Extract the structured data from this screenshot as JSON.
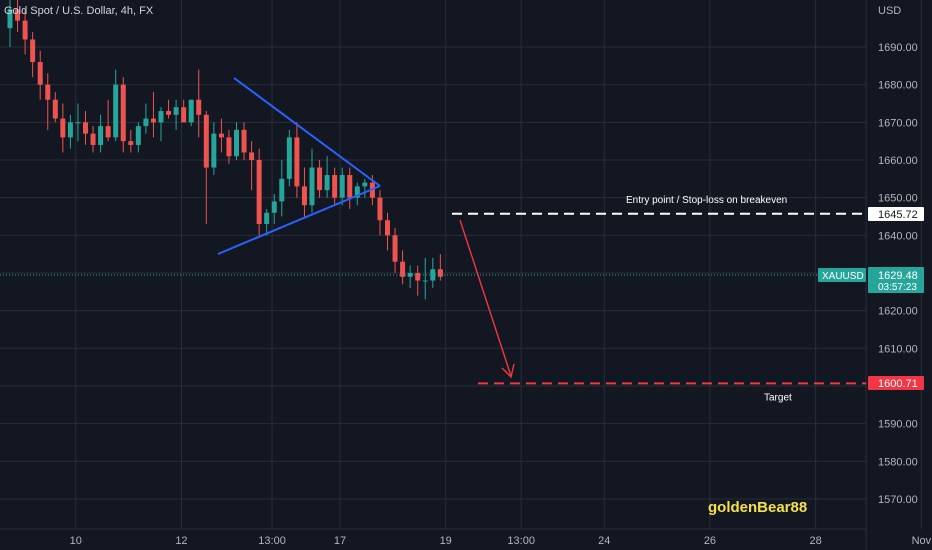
{
  "chart_data": {
    "type": "candlestick",
    "title": "Gold Spot / U.S. Dollar, 4h, FX",
    "currency_label": "USD",
    "symbol": "XAUUSD",
    "last_price": "1629.48",
    "countdown": "03:57:23",
    "ylim": [
      1565,
      1702
    ],
    "y_ticks": [
      "1690.00",
      "1680.00",
      "1670.00",
      "1660.00",
      "1650.00",
      "1640.00",
      "1630.00",
      "1620.00",
      "1610.00",
      "1600.00",
      "1590.00",
      "1580.00",
      "1570.00"
    ],
    "y_tick_values": [
      1690,
      1680,
      1670,
      1660,
      1650,
      1640,
      1630,
      1620,
      1610,
      1600,
      1590,
      1580,
      1570
    ],
    "x_ticks": [
      "10",
      "12",
      "13:00",
      "17",
      "19",
      "13:00",
      "24",
      "26",
      "28",
      "Nov"
    ],
    "x_tick_index": [
      5,
      19,
      31,
      40,
      54,
      64,
      75,
      89,
      103,
      117
    ],
    "grid": true,
    "colors": {
      "up": "#26a69a",
      "down": "#ef5350",
      "background": "#131722",
      "grid": "#2a2e39",
      "trendline": "#2962ff",
      "stop": "#ffffff",
      "target": "#f23645",
      "arrow": "#f23645",
      "watermark": "#f5e04b",
      "tag": "#26a69a"
    },
    "candles": [
      [
        1695,
        1703,
        1690,
        1700
      ],
      [
        1700,
        1703,
        1694,
        1697
      ],
      [
        1697,
        1700,
        1688,
        1692
      ],
      [
        1692,
        1694,
        1682,
        1686
      ],
      [
        1686,
        1689,
        1676,
        1680
      ],
      [
        1680,
        1683,
        1668,
        1676
      ],
      [
        1676,
        1678,
        1670,
        1671
      ],
      [
        1671,
        1675,
        1662,
        1666
      ],
      [
        1666,
        1672,
        1663,
        1670
      ],
      [
        1670,
        1675,
        1665,
        1670
      ],
      [
        1670,
        1673,
        1664,
        1667
      ],
      [
        1667,
        1669,
        1662,
        1664
      ],
      [
        1664,
        1672,
        1662,
        1669
      ],
      [
        1669,
        1676,
        1665,
        1666
      ],
      [
        1666,
        1684,
        1665,
        1680
      ],
      [
        1680,
        1682,
        1662,
        1665
      ],
      [
        1665,
        1668,
        1662,
        1664
      ],
      [
        1664,
        1670,
        1662,
        1669
      ],
      [
        1669,
        1675,
        1667,
        1671
      ],
      [
        1671,
        1678,
        1666,
        1670
      ],
      [
        1670,
        1674,
        1665,
        1673
      ],
      [
        1673,
        1676,
        1671,
        1672
      ],
      [
        1672,
        1676,
        1668,
        1674
      ],
      [
        1674,
        1676,
        1670,
        1670
      ],
      [
        1670,
        1676,
        1669,
        1676
      ],
      [
        1676,
        1684,
        1666,
        1672
      ],
      [
        1672,
        1673,
        1643,
        1658
      ],
      [
        1658,
        1670,
        1656,
        1667
      ],
      [
        1667,
        1671,
        1662,
        1666
      ],
      [
        1666,
        1668,
        1659,
        1661
      ],
      [
        1661,
        1670,
        1660,
        1668
      ],
      [
        1668,
        1670,
        1660,
        1662
      ],
      [
        1662,
        1665,
        1652,
        1660
      ],
      [
        1660,
        1663,
        1640,
        1643
      ],
      [
        1643,
        1647,
        1640,
        1646
      ],
      [
        1646,
        1651,
        1643,
        1649
      ],
      [
        1649,
        1660,
        1645,
        1655
      ],
      [
        1655,
        1668,
        1653,
        1666
      ],
      [
        1666,
        1670,
        1650,
        1653
      ],
      [
        1653,
        1658,
        1645,
        1648
      ],
      [
        1648,
        1663,
        1646,
        1658
      ],
      [
        1658,
        1660,
        1650,
        1652
      ],
      [
        1652,
        1661,
        1650,
        1656
      ],
      [
        1656,
        1658,
        1648,
        1650
      ],
      [
        1650,
        1658,
        1648,
        1656
      ],
      [
        1656,
        1658,
        1647,
        1650
      ],
      [
        1650,
        1654,
        1648,
        1653
      ],
      [
        1653,
        1655,
        1650,
        1654
      ],
      [
        1654,
        1656,
        1648,
        1650
      ],
      [
        1650,
        1652,
        1640,
        1644
      ],
      [
        1644,
        1646,
        1636,
        1640
      ],
      [
        1640,
        1642,
        1630,
        1633
      ],
      [
        1633,
        1636,
        1627,
        1629
      ],
      [
        1629,
        1632,
        1626,
        1630
      ],
      [
        1630,
        1632,
        1624,
        1628
      ],
      [
        1628,
        1634,
        1623,
        1628
      ],
      [
        1628,
        1634,
        1626,
        1631
      ],
      [
        1631,
        1635,
        1628,
        1629
      ]
    ],
    "annotations": {
      "entry_label": "Entry point / Stop-loss on breakeven",
      "entry_price": 1645.72,
      "entry_tag": "1645.72",
      "target_label": "Target",
      "target_price": 1600.71,
      "target_tag": "1600.71",
      "watermark": "goldenBear88"
    }
  }
}
